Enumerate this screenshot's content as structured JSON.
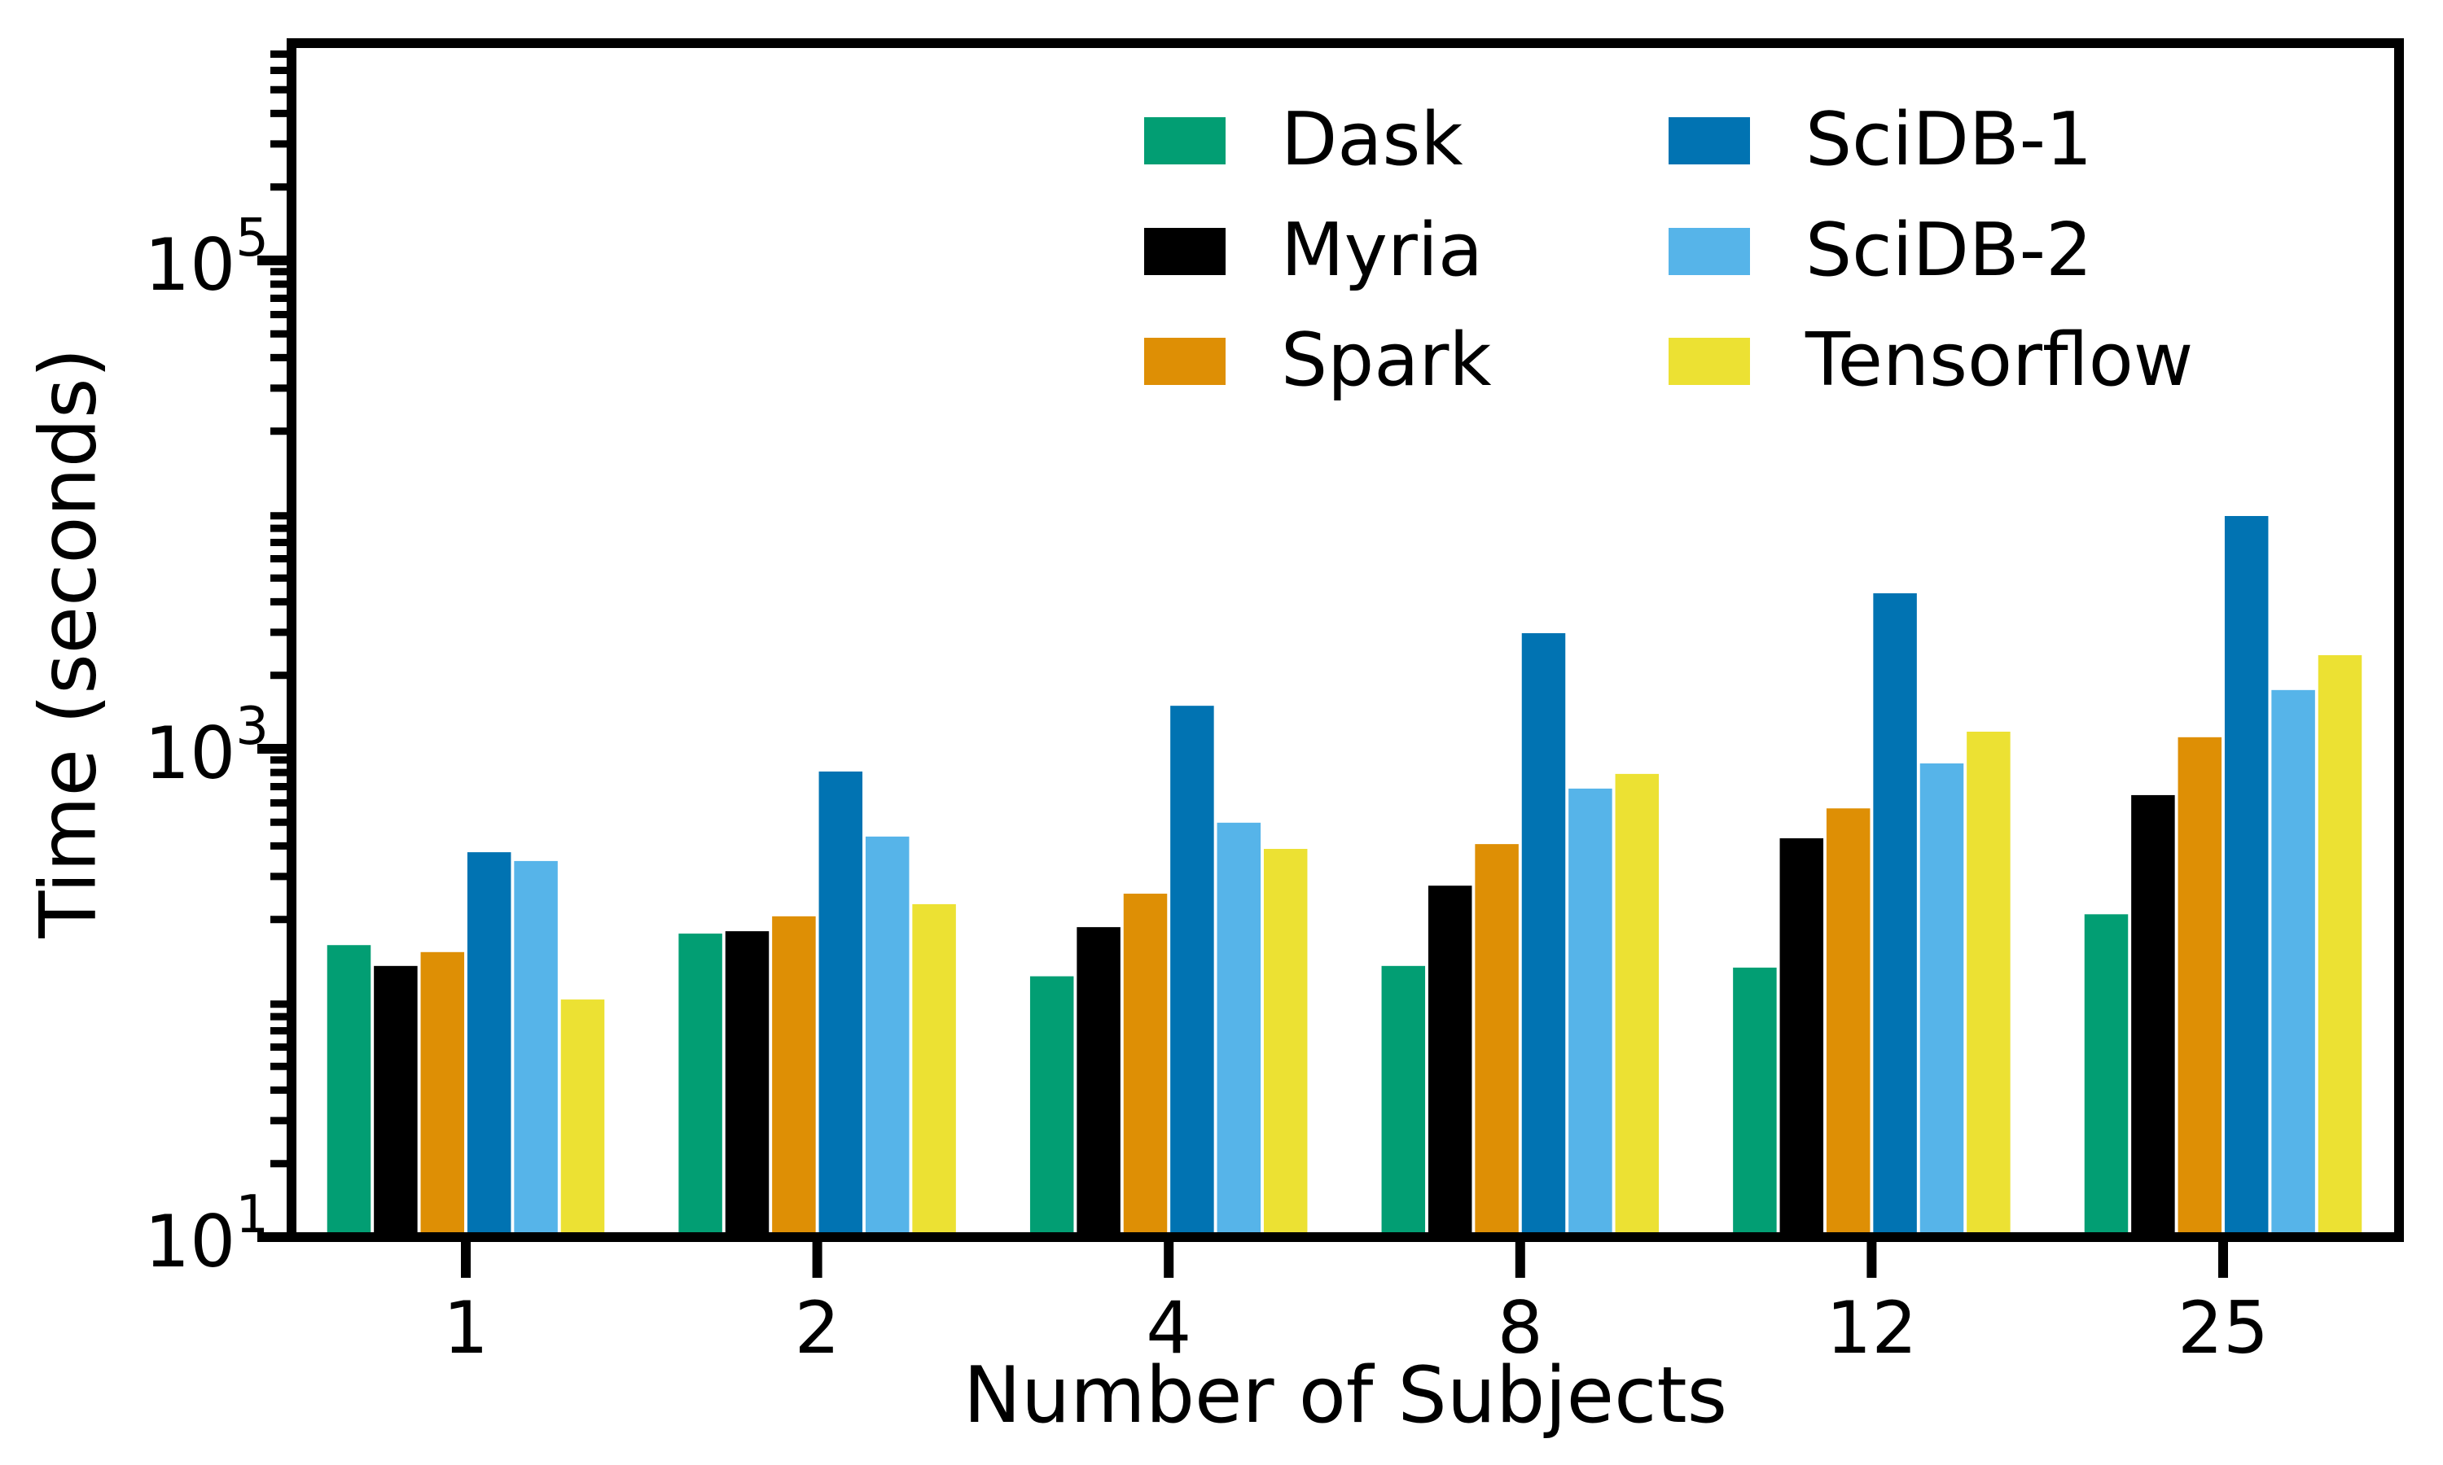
{
  "figure": {
    "background": "#ffffff",
    "frame_color": "#000000"
  },
  "chart_data": {
    "type": "bar",
    "title": "",
    "xlabel": "Number of Subjects",
    "ylabel": "Time (seconds)",
    "yscale": "log",
    "ylim": [
      10,
      760000
    ],
    "grid": false,
    "legend_position": "upper center, 2 columns, no frame",
    "categories": [
      "1",
      "2",
      "4",
      "8",
      "12",
      "25"
    ],
    "series": [
      {
        "name": "Dask",
        "color": "#029E73",
        "values": [
          157,
          175,
          117,
          129,
          127,
          210
        ]
      },
      {
        "name": "Myria",
        "color": "#000000",
        "values": [
          129,
          179,
          186,
          275,
          430,
          646
        ]
      },
      {
        "name": "Spark",
        "color": "#DE8F05",
        "values": [
          147,
          206,
          255,
          407,
          570,
          1115
        ]
      },
      {
        "name": "SciDB-1",
        "color": "#0173B2",
        "values": [
          377,
          807,
          1500,
          2975,
          4335,
          8980
        ]
      },
      {
        "name": "SciDB-2",
        "color": "#56B4E9",
        "values": [
          347,
          437,
          498,
          687,
          871,
          1740
        ]
      },
      {
        "name": "Tensorflow",
        "color": "#ECE133",
        "values": [
          94,
          231,
          389,
          789,
          1175,
          2417
        ]
      }
    ],
    "y_ticks": [
      {
        "value": 10,
        "base": "10",
        "exp": "1"
      },
      {
        "value": 1000,
        "base": "10",
        "exp": "3"
      },
      {
        "value": 100000,
        "base": "10",
        "exp": "5"
      }
    ],
    "y_minor_subs": [
      2,
      3,
      4,
      5,
      6,
      7,
      8,
      9
    ]
  }
}
